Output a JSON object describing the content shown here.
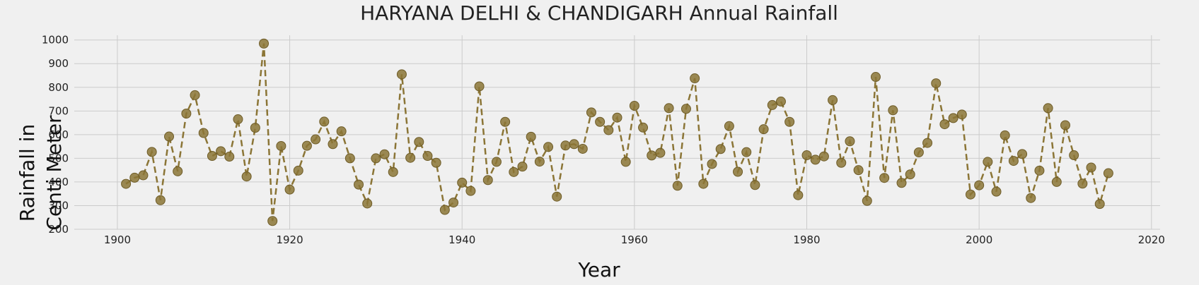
{
  "chart_data": {
    "type": "line",
    "title": "HARYANA DELHI & CHANDIGARH Annual Rainfall",
    "xlabel": "Year",
    "ylabel_lines": [
      "Rainfall in",
      "Centi Meter"
    ],
    "xlim": [
      1895,
      2021
    ],
    "ylim": [
      200,
      1020
    ],
    "xticks": [
      1900,
      1920,
      1940,
      1960,
      1980,
      2000,
      2020
    ],
    "yticks": [
      200,
      300,
      400,
      500,
      600,
      700,
      800,
      900,
      1000
    ],
    "grid": true,
    "line_style": "dashed",
    "marker": "circle",
    "color": "#8b7536",
    "series": [
      {
        "x": [
          1901,
          1902,
          1903,
          1904,
          1905,
          1906,
          1907,
          1908,
          1909,
          1910,
          1911,
          1912,
          1913,
          1914,
          1915,
          1916,
          1917,
          1918,
          1919,
          1920,
          1921,
          1922,
          1923,
          1924,
          1925,
          1926,
          1927,
          1928,
          1929,
          1930,
          1931,
          1932,
          1933,
          1934,
          1935,
          1936,
          1937,
          1938,
          1939,
          1940,
          1941,
          1942,
          1943,
          1944,
          1945,
          1946,
          1947,
          1948,
          1949,
          1950,
          1951,
          1952,
          1953,
          1954,
          1955,
          1956,
          1957,
          1958,
          1959,
          1960,
          1961,
          1962,
          1963,
          1964,
          1965,
          1966,
          1967,
          1968,
          1969,
          1970,
          1971,
          1972,
          1973,
          1974,
          1975,
          1976,
          1977,
          1978,
          1979,
          1980,
          1981,
          1982,
          1983,
          1984,
          1985,
          1986,
          1987,
          1988,
          1989,
          1990,
          1991,
          1992,
          1993,
          1994,
          1995,
          1996,
          1997,
          1998,
          1999,
          2000,
          2001,
          2002,
          2003,
          2004,
          2005,
          2006,
          2007,
          2008,
          2009,
          2010,
          2011,
          2012,
          2013,
          2014,
          2015
        ],
        "y": [
          392,
          418,
          428,
          527,
          323,
          592,
          445,
          689,
          767,
          607,
          510,
          530,
          507,
          665,
          423,
          629,
          985,
          235,
          552,
          368,
          448,
          553,
          580,
          655,
          560,
          614,
          500,
          389,
          309,
          500,
          517,
          442,
          855,
          502,
          569,
          510,
          481,
          282,
          313,
          397,
          362,
          804,
          408,
          485,
          654,
          442,
          465,
          591,
          486,
          548,
          338,
          554,
          560,
          540,
          694,
          654,
          619,
          672,
          485,
          722,
          630,
          512,
          523,
          712,
          384,
          709,
          838,
          392,
          476,
          539,
          636,
          443,
          526,
          387,
          623,
          725,
          740,
          654,
          344,
          513,
          494,
          508,
          746,
          481,
          572,
          450,
          320,
          844,
          417,
          703,
          396,
          432,
          525,
          565,
          817,
          644,
          670,
          685,
          347,
          386,
          485,
          359,
          597,
          489,
          518,
          332,
          448,
          712,
          400,
          640,
          513,
          393,
          461,
          307,
          437
        ]
      }
    ]
  }
}
